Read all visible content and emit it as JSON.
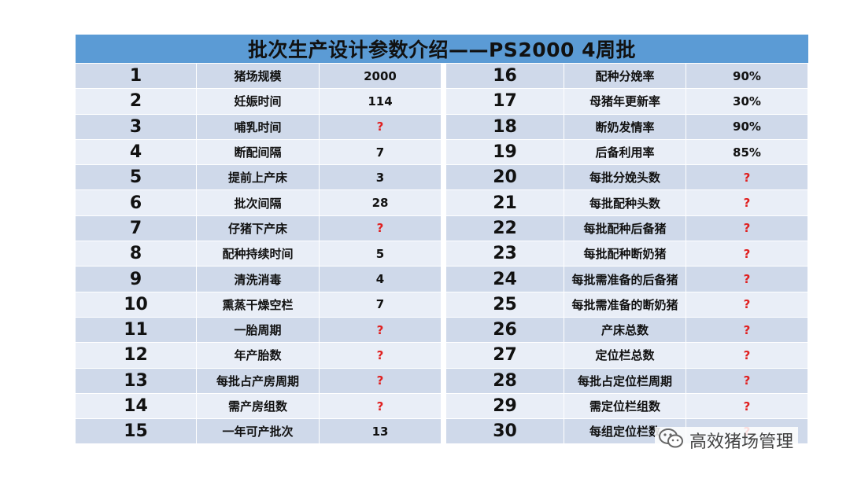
{
  "title": "批次生产设计参数介绍——PS2000   4周批",
  "left_rows": [
    {
      "no": "1",
      "label": "猪场规模",
      "value": "2000"
    },
    {
      "no": "2",
      "label": "妊娠时间",
      "value": "114"
    },
    {
      "no": "3",
      "label": "哺乳时间",
      "value": "?"
    },
    {
      "no": "4",
      "label": "断配间隔",
      "value": "7"
    },
    {
      "no": "5",
      "label": "提前上产床",
      "value": "3"
    },
    {
      "no": "6",
      "label": "批次间隔",
      "value": "28"
    },
    {
      "no": "7",
      "label": "仔猪下产床",
      "value": "?"
    },
    {
      "no": "8",
      "label": "配种持续时间",
      "value": "5"
    },
    {
      "no": "9",
      "label": "清洗消毒",
      "value": "4"
    },
    {
      "no": "10",
      "label": "熏蒸干燥空栏",
      "value": "7"
    },
    {
      "no": "11",
      "label": "一胎周期",
      "value": "?"
    },
    {
      "no": "12",
      "label": "年产胎数",
      "value": "?"
    },
    {
      "no": "13",
      "label": "每批占产房周期",
      "value": "?"
    },
    {
      "no": "14",
      "label": "需产房组数",
      "value": "?"
    },
    {
      "no": "15",
      "label": "一年可产批次",
      "value": "13"
    }
  ],
  "right_rows": [
    {
      "no": "16",
      "label": "配种分娩率",
      "value": "90%"
    },
    {
      "no": "17",
      "label": "母猪年更新率",
      "value": "30%"
    },
    {
      "no": "18",
      "label": "断奶发情率",
      "value": "90%"
    },
    {
      "no": "19",
      "label": "后备利用率",
      "value": "85%"
    },
    {
      "no": "20",
      "label": "每批分娩头数",
      "value": "?"
    },
    {
      "no": "21",
      "label": "每批配种头数",
      "value": "?"
    },
    {
      "no": "22",
      "label": "每批配种后备猪",
      "value": "?"
    },
    {
      "no": "23",
      "label": "每批配种断奶猪",
      "value": "?"
    },
    {
      "no": "24",
      "label": "每批需准备的后备猪",
      "value": "?"
    },
    {
      "no": "25",
      "label": "每批需准备的断奶猪",
      "value": "?"
    },
    {
      "no": "26",
      "label": "产床总数",
      "value": "?"
    },
    {
      "no": "27",
      "label": "定位栏总数",
      "value": "?"
    },
    {
      "no": "28",
      "label": "每批占定位栏周期",
      "value": "?"
    },
    {
      "no": "29",
      "label": "需定位栏组数",
      "value": "?"
    },
    {
      "no": "30",
      "label": "每组定位栏数",
      "value": "?"
    }
  ],
  "watermark": {
    "text": "高效猪场管理",
    "icon": "wechat-icon"
  },
  "colors": {
    "header": "#5b9bd5",
    "row_dark": "#cfd9ea",
    "row_light": "#e9eef7",
    "question": "#e02020"
  }
}
